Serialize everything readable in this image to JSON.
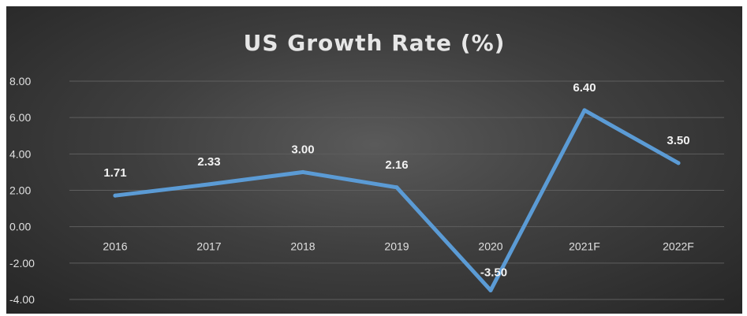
{
  "chart_data": {
    "type": "line",
    "title": "US Growth  Rate (%)",
    "categories": [
      "2016",
      "2017",
      "2018",
      "2019",
      "2020",
      "2021F",
      "2022F"
    ],
    "series": [
      {
        "values": [
          1.71,
          2.33,
          3.0,
          2.16,
          -3.5,
          6.4,
          3.5
        ],
        "labels": [
          "1.71",
          "2.33",
          "3.00",
          "2.16",
          "-3.50",
          "6.40",
          "3.50"
        ]
      }
    ],
    "y_ticks": [
      "8.00",
      "6.00",
      "4.00",
      "2.00",
      "0.00",
      "-2.00",
      "-4.00"
    ],
    "ylim": [
      -4,
      8
    ],
    "grid": true,
    "legend": "none",
    "colors": {
      "line": "#5b9bd5",
      "grid": "#5e5e5e",
      "text": "#e0e0e0"
    }
  }
}
